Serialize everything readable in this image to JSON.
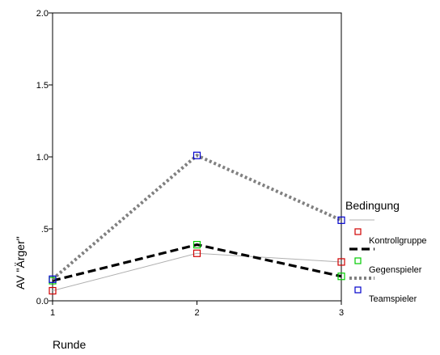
{
  "chart_data": {
    "type": "line",
    "title": "",
    "xlabel": "Runde",
    "ylabel": "AV \"Ärger\"",
    "x": [
      1,
      2,
      3
    ],
    "x_tick_labels": [
      "1",
      "2",
      "3"
    ],
    "ylim": [
      0,
      2
    ],
    "y_ticks": [
      0,
      0.5,
      1,
      1.5,
      2
    ],
    "y_tick_labels": [
      "0.0",
      ".5",
      "1.0",
      "1.5",
      "2.0"
    ],
    "grid": false,
    "legend": {
      "title": "Bedingung",
      "placement": "right"
    },
    "series": [
      {
        "name": "Kontrollgruppe",
        "values": [
          0.07,
          0.33,
          0.27
        ],
        "line_color": "#b0b0b0",
        "line_style": "solid-thin",
        "marker_color": "#d00000"
      },
      {
        "name": "Gegenspieler",
        "values": [
          0.14,
          0.39,
          0.17
        ],
        "line_color": "#000000",
        "line_style": "dashed-thick",
        "marker_color": "#00cc00"
      },
      {
        "name": "Teamspieler",
        "values": [
          0.15,
          1.01,
          0.56
        ],
        "line_color": "#808080",
        "line_style": "dotted-thick",
        "marker_color": "#0000cc"
      }
    ]
  }
}
